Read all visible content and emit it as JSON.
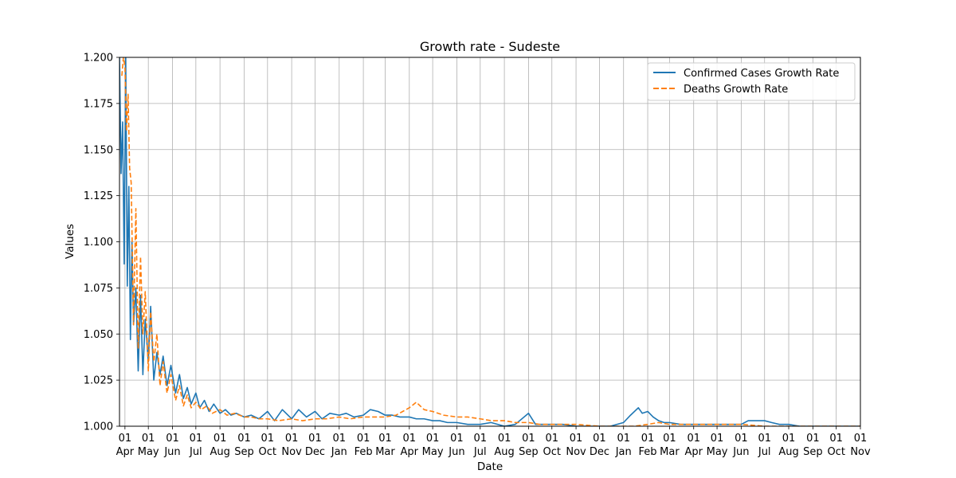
{
  "chart_data": {
    "type": "line",
    "title": "Growth rate - Sudeste",
    "xlabel": "Date",
    "ylabel": "Values",
    "ylim": [
      1.0,
      1.2
    ],
    "xlim": [
      "2020-03-25",
      "2022-11-01"
    ],
    "y_ticks": [
      "1.000",
      "1.025",
      "1.050",
      "1.075",
      "1.100",
      "1.125",
      "1.150",
      "1.175",
      "1.200"
    ],
    "x_ticks": [
      {
        "date": "2020-04-01",
        "day": "01",
        "month": "Apr"
      },
      {
        "date": "2020-05-01",
        "day": "01",
        "month": "May"
      },
      {
        "date": "2020-06-01",
        "day": "01",
        "month": "Jun"
      },
      {
        "date": "2020-07-01",
        "day": "01",
        "month": "Jul"
      },
      {
        "date": "2020-08-01",
        "day": "01",
        "month": "Aug"
      },
      {
        "date": "2020-09-01",
        "day": "01",
        "month": "Sep"
      },
      {
        "date": "2020-10-01",
        "day": "01",
        "month": "Oct"
      },
      {
        "date": "2020-11-01",
        "day": "01",
        "month": "Nov"
      },
      {
        "date": "2020-12-01",
        "day": "01",
        "month": "Dec"
      },
      {
        "date": "2021-01-01",
        "day": "01",
        "month": "Jan"
      },
      {
        "date": "2021-02-01",
        "day": "01",
        "month": "Feb"
      },
      {
        "date": "2021-03-01",
        "day": "01",
        "month": "Mar"
      },
      {
        "date": "2021-04-01",
        "day": "01",
        "month": "Apr"
      },
      {
        "date": "2021-05-01",
        "day": "01",
        "month": "May"
      },
      {
        "date": "2021-06-01",
        "day": "01",
        "month": "Jun"
      },
      {
        "date": "2021-07-01",
        "day": "01",
        "month": "Jul"
      },
      {
        "date": "2021-08-01",
        "day": "01",
        "month": "Aug"
      },
      {
        "date": "2021-09-01",
        "day": "01",
        "month": "Sep"
      },
      {
        "date": "2021-10-01",
        "day": "01",
        "month": "Oct"
      },
      {
        "date": "2021-11-01",
        "day": "01",
        "month": "Nov"
      },
      {
        "date": "2021-12-01",
        "day": "01",
        "month": "Dec"
      },
      {
        "date": "2022-01-01",
        "day": "01",
        "month": "Jan"
      },
      {
        "date": "2022-02-01",
        "day": "01",
        "month": "Feb"
      },
      {
        "date": "2022-03-01",
        "day": "01",
        "month": "Mar"
      },
      {
        "date": "2022-04-01",
        "day": "01",
        "month": "Apr"
      },
      {
        "date": "2022-05-01",
        "day": "01",
        "month": "May"
      },
      {
        "date": "2022-06-01",
        "day": "01",
        "month": "Jun"
      },
      {
        "date": "2022-07-01",
        "day": "01",
        "month": "Jul"
      },
      {
        "date": "2022-08-01",
        "day": "01",
        "month": "Aug"
      },
      {
        "date": "2022-09-01",
        "day": "01",
        "month": "Sep"
      },
      {
        "date": "2022-10-01",
        "day": "01",
        "month": "Oct"
      },
      {
        "date": "2022-11-01",
        "day": "01",
        "month": "Nov"
      }
    ],
    "grid": true,
    "legend_position": "top-right",
    "series": [
      {
        "name": "Confirmed Cases Growth Rate",
        "color": "#1f77b4",
        "style": "solid",
        "x": [
          "2020-03-25",
          "2020-03-27",
          "2020-03-29",
          "2020-03-31",
          "2020-04-02",
          "2020-04-04",
          "2020-04-06",
          "2020-04-08",
          "2020-04-10",
          "2020-04-12",
          "2020-04-15",
          "2020-04-18",
          "2020-04-21",
          "2020-04-24",
          "2020-04-27",
          "2020-05-01",
          "2020-05-04",
          "2020-05-08",
          "2020-05-12",
          "2020-05-16",
          "2020-05-20",
          "2020-05-25",
          "2020-05-30",
          "2020-06-05",
          "2020-06-10",
          "2020-06-15",
          "2020-06-20",
          "2020-06-25",
          "2020-07-01",
          "2020-07-06",
          "2020-07-12",
          "2020-07-18",
          "2020-07-24",
          "2020-08-01",
          "2020-08-08",
          "2020-08-15",
          "2020-08-22",
          "2020-09-01",
          "2020-09-10",
          "2020-09-20",
          "2020-10-01",
          "2020-10-10",
          "2020-10-20",
          "2020-11-01",
          "2020-11-10",
          "2020-11-20",
          "2020-12-01",
          "2020-12-10",
          "2020-12-20",
          "2021-01-01",
          "2021-01-10",
          "2021-01-20",
          "2021-02-01",
          "2021-02-10",
          "2021-02-20",
          "2021-03-01",
          "2021-03-10",
          "2021-03-20",
          "2021-04-01",
          "2021-04-10",
          "2021-04-20",
          "2021-05-01",
          "2021-05-10",
          "2021-05-20",
          "2021-06-01",
          "2021-06-15",
          "2021-07-01",
          "2021-07-15",
          "2021-08-01",
          "2021-08-15",
          "2021-09-01",
          "2021-09-10",
          "2021-09-16",
          "2021-09-18",
          "2021-09-20",
          "2021-10-01",
          "2021-10-15",
          "2021-11-01",
          "2021-11-15",
          "2021-12-01",
          "2021-12-15",
          "2022-01-01",
          "2022-01-10",
          "2022-01-20",
          "2022-01-25",
          "2022-02-01",
          "2022-02-08",
          "2022-02-15",
          "2022-02-22",
          "2022-03-01",
          "2022-03-15",
          "2022-04-01",
          "2022-04-15",
          "2022-05-01",
          "2022-05-15",
          "2022-06-01",
          "2022-06-10",
          "2022-06-20",
          "2022-07-01",
          "2022-07-10",
          "2022-07-20",
          "2022-08-01",
          "2022-08-15",
          "2022-09-01",
          "2022-09-15",
          "2022-10-01",
          "2022-10-15",
          "2022-11-01"
        ],
        "y": [
          1.2,
          1.137,
          1.165,
          1.088,
          1.2,
          1.076,
          1.13,
          1.047,
          1.1,
          1.055,
          1.075,
          1.03,
          1.071,
          1.028,
          1.058,
          1.035,
          1.065,
          1.025,
          1.04,
          1.028,
          1.038,
          1.022,
          1.033,
          1.018,
          1.028,
          1.015,
          1.021,
          1.012,
          1.018,
          1.01,
          1.014,
          1.008,
          1.012,
          1.007,
          1.009,
          1.006,
          1.007,
          1.005,
          1.006,
          1.004,
          1.008,
          1.003,
          1.009,
          1.004,
          1.009,
          1.005,
          1.008,
          1.004,
          1.007,
          1.006,
          1.007,
          1.005,
          1.006,
          1.009,
          1.008,
          1.006,
          1.006,
          1.005,
          1.005,
          1.004,
          1.004,
          1.003,
          1.003,
          1.002,
          1.002,
          1.001,
          1.001,
          1.002,
          1.0,
          1.001,
          1.007,
          1.001,
          1.001,
          1.001,
          1.001,
          1.001,
          1.001,
          1.0,
          1.0,
          1.0,
          1.0,
          1.002,
          1.006,
          1.01,
          1.007,
          1.008,
          1.005,
          1.003,
          1.002,
          1.002,
          1.001,
          1.001,
          1.001,
          1.001,
          1.001,
          1.001,
          1.003,
          1.003,
          1.003,
          1.002,
          1.001,
          1.001,
          1.0,
          1.0,
          1.0,
          1.0,
          1.0,
          1.0
        ]
      },
      {
        "name": "Deaths Growth Rate",
        "color": "#ff7f0e",
        "style": "dashed",
        "x": [
          "2020-03-28",
          "2020-03-30",
          "2020-04-01",
          "2020-04-03",
          "2020-04-05",
          "2020-04-07",
          "2020-04-09",
          "2020-04-12",
          "2020-04-15",
          "2020-04-18",
          "2020-04-21",
          "2020-04-24",
          "2020-04-27",
          "2020-05-01",
          "2020-05-04",
          "2020-05-08",
          "2020-05-12",
          "2020-05-16",
          "2020-05-20",
          "2020-05-25",
          "2020-05-30",
          "2020-06-05",
          "2020-06-10",
          "2020-06-15",
          "2020-06-20",
          "2020-06-25",
          "2020-07-01",
          "2020-07-08",
          "2020-07-15",
          "2020-07-22",
          "2020-08-01",
          "2020-08-10",
          "2020-08-20",
          "2020-09-01",
          "2020-09-10",
          "2020-09-20",
          "2020-10-01",
          "2020-10-15",
          "2020-11-01",
          "2020-11-15",
          "2020-12-01",
          "2020-12-15",
          "2021-01-01",
          "2021-01-15",
          "2021-02-01",
          "2021-02-15",
          "2021-03-01",
          "2021-03-15",
          "2021-04-01",
          "2021-04-10",
          "2021-04-20",
          "2021-05-01",
          "2021-05-15",
          "2021-06-01",
          "2021-06-15",
          "2021-07-01",
          "2021-07-15",
          "2021-08-01",
          "2021-08-15",
          "2021-09-01",
          "2021-09-15",
          "2021-10-01",
          "2021-10-15",
          "2021-11-01",
          "2021-12-01",
          "2022-01-01",
          "2022-01-15",
          "2022-02-01",
          "2022-02-15",
          "2022-03-01",
          "2022-04-01",
          "2022-05-01",
          "2022-06-01",
          "2022-07-01",
          "2022-08-01",
          "2022-09-01",
          "2022-10-01",
          "2022-11-01"
        ],
        "y": [
          1.19,
          1.2,
          1.195,
          1.16,
          1.18,
          1.14,
          1.132,
          1.055,
          1.118,
          1.042,
          1.092,
          1.05,
          1.073,
          1.03,
          1.062,
          1.035,
          1.05,
          1.022,
          1.035,
          1.018,
          1.028,
          1.014,
          1.022,
          1.011,
          1.017,
          1.01,
          1.013,
          1.009,
          1.011,
          1.007,
          1.009,
          1.006,
          1.007,
          1.005,
          1.005,
          1.004,
          1.004,
          1.003,
          1.004,
          1.003,
          1.004,
          1.004,
          1.005,
          1.004,
          1.005,
          1.005,
          1.005,
          1.006,
          1.01,
          1.013,
          1.009,
          1.008,
          1.006,
          1.005,
          1.005,
          1.004,
          1.003,
          1.003,
          1.002,
          1.002,
          1.001,
          1.001,
          1.001,
          1.001,
          1.0,
          1.0,
          1.0,
          1.001,
          1.002,
          1.001,
          1.001,
          1.001,
          1.001,
          1.0,
          1.0,
          1.0,
          1.0,
          1.0
        ]
      }
    ]
  }
}
